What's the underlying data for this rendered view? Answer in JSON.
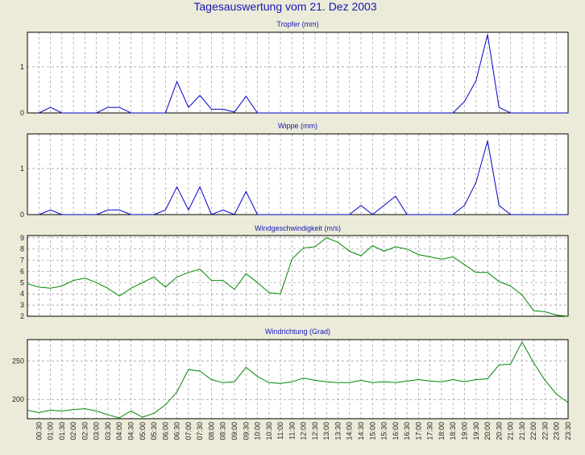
{
  "page_title": "Tagesauswertung vom 21. Dez 2003",
  "x_labels": [
    "00:30",
    "01:00",
    "01:30",
    "02:00",
    "02:30",
    "03:00",
    "03:30",
    "04:00",
    "04:30",
    "05:00",
    "05:30",
    "06:00",
    "06:30",
    "07:00",
    "07:30",
    "08:00",
    "08:30",
    "09:00",
    "09:30",
    "10:00",
    "10:30",
    "11:00",
    "11:30",
    "12:00",
    "12:30",
    "13:00",
    "13:30",
    "14:00",
    "14:30",
    "15:00",
    "15:30",
    "16:00",
    "16:30",
    "17:00",
    "17:30",
    "18:00",
    "18:30",
    "19:00",
    "19:30",
    "20:00",
    "20:30",
    "21:00",
    "21:30",
    "22:00",
    "22:30",
    "23:00",
    "23:30"
  ],
  "chart_data": [
    {
      "type": "line",
      "title": "Tropfer (mm)",
      "ylim": [
        0,
        1.75
      ],
      "yticks": [
        0,
        1
      ],
      "grid": true,
      "color": "#0000cc",
      "x": [
        1,
        2,
        3,
        4,
        5,
        6,
        7,
        8,
        9,
        10,
        11,
        12,
        13,
        14,
        15,
        16,
        17,
        18,
        19,
        20,
        21,
        22,
        23,
        24,
        25,
        26,
        27,
        28,
        29,
        30,
        31,
        32,
        33,
        34,
        35,
        36,
        37,
        38,
        39,
        40,
        41,
        42,
        43,
        44,
        45,
        46,
        47
      ],
      "values": [
        0,
        0.12,
        0,
        0,
        0,
        0,
        0.12,
        0.12,
        0,
        0,
        0,
        0,
        0.68,
        0.12,
        0.38,
        0.08,
        0.08,
        0.02,
        0.36,
        0,
        0,
        0,
        0,
        0,
        0,
        0,
        0,
        0,
        0,
        0,
        0,
        0,
        0,
        0,
        0,
        0,
        0,
        0.25,
        0.7,
        1.7,
        0.12,
        0,
        0,
        0,
        0,
        0,
        0
      ]
    },
    {
      "type": "line",
      "title": "Wippe (mm)",
      "ylim": [
        0,
        1.75
      ],
      "yticks": [
        0,
        1
      ],
      "grid": true,
      "color": "#0000cc",
      "x": [
        1,
        2,
        3,
        4,
        5,
        6,
        7,
        8,
        9,
        10,
        11,
        12,
        13,
        14,
        15,
        16,
        17,
        18,
        19,
        20,
        21,
        22,
        23,
        24,
        25,
        26,
        27,
        28,
        29,
        30,
        31,
        32,
        33,
        34,
        35,
        36,
        37,
        38,
        39,
        40,
        41,
        42,
        43,
        44,
        45,
        46,
        47
      ],
      "values": [
        0,
        0.1,
        0,
        0,
        0,
        0,
        0.1,
        0.1,
        0,
        0,
        0,
        0.1,
        0.6,
        0.1,
        0.6,
        0,
        0.1,
        0,
        0.5,
        0,
        0,
        0,
        0,
        0,
        0,
        0,
        0,
        0,
        0.2,
        0,
        0.2,
        0.4,
        0,
        0,
        0,
        0,
        0,
        0.2,
        0.7,
        1.6,
        0.2,
        0,
        0,
        0,
        0,
        0,
        0
      ]
    },
    {
      "type": "line",
      "title": "Windgeschwindigkeit (m/s)",
      "ylim": [
        2,
        9.2
      ],
      "yticks": [
        2,
        3,
        4,
        5,
        6,
        7,
        8,
        9
      ],
      "grid": true,
      "color": "#008800",
      "x": [
        0,
        1,
        2,
        3,
        4,
        5,
        6,
        7,
        8,
        9,
        10,
        11,
        12,
        13,
        14,
        15,
        16,
        17,
        18,
        19,
        20,
        21,
        22,
        23,
        24,
        25,
        26,
        27,
        28,
        29,
        30,
        31,
        32,
        33,
        34,
        35,
        36,
        37,
        38,
        39,
        40,
        41,
        42,
        43,
        44,
        45,
        46,
        47
      ],
      "values": [
        4.9,
        4.6,
        4.5,
        4.7,
        5.2,
        5.4,
        5.0,
        4.5,
        3.8,
        4.5,
        5.0,
        5.5,
        4.6,
        5.5,
        5.9,
        6.2,
        5.2,
        5.2,
        4.4,
        5.8,
        5.0,
        4.1,
        4.0,
        7.1,
        8.1,
        8.2,
        9.0,
        8.6,
        7.8,
        7.4,
        8.3,
        7.8,
        8.2,
        8.0,
        7.5,
        7.3,
        7.1,
        7.3,
        6.6,
        5.9,
        5.9,
        5.1,
        4.7,
        3.9,
        2.5,
        2.4,
        2.1,
        2.0
      ]
    },
    {
      "type": "line",
      "title": "Windrichtung (Grad)",
      "ylim": [
        175,
        278
      ],
      "yticks": [
        200,
        250
      ],
      "grid": true,
      "color": "#008800",
      "x": [
        0,
        1,
        2,
        3,
        4,
        5,
        6,
        7,
        8,
        9,
        10,
        11,
        12,
        13,
        14,
        15,
        16,
        17,
        18,
        19,
        20,
        21,
        22,
        23,
        24,
        25,
        26,
        27,
        28,
        29,
        30,
        31,
        32,
        33,
        34,
        35,
        36,
        37,
        38,
        39,
        40,
        41,
        42,
        43,
        44,
        45,
        46,
        47
      ],
      "values": [
        186,
        183,
        186,
        185,
        187,
        188,
        185,
        180,
        176,
        185,
        177,
        182,
        193,
        210,
        239,
        237,
        226,
        222,
        223,
        242,
        230,
        222,
        221,
        223,
        228,
        225,
        223,
        222,
        222,
        225,
        222,
        223,
        222,
        224,
        226,
        224,
        223,
        226,
        223,
        226,
        227,
        245,
        246,
        275,
        248,
        225,
        207,
        196
      ]
    }
  ]
}
